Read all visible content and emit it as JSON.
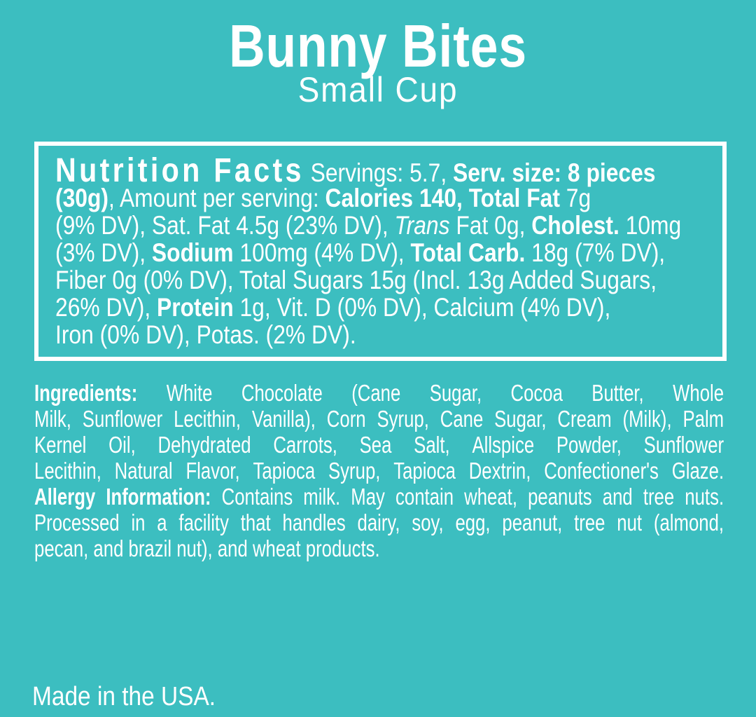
{
  "colors": {
    "background": "#3cbec0",
    "text": "#ffffff",
    "box_border": "#ffffff"
  },
  "header": {
    "title": "Bunny Bites",
    "subtitle": "Small Cup"
  },
  "nutrition_box": {
    "lines": [
      {
        "type": "plain",
        "segments": [
          {
            "t": "Nutrition Facts",
            "s": "h"
          },
          {
            "t": " Servings: 5.7, ",
            "s": "r"
          },
          {
            "t": "Serv. size: 8 pieces",
            "s": "b"
          }
        ]
      },
      {
        "type": "plain",
        "segments": [
          {
            "t": "(30g)",
            "s": "b"
          },
          {
            "t": ", Amount per serving: ",
            "s": "r"
          },
          {
            "t": "Calories 140, Total Fat",
            "s": "b"
          },
          {
            "t": " 7g",
            "s": "r"
          }
        ]
      },
      {
        "type": "plain",
        "segments": [
          {
            "t": "(9% DV), Sat. Fat 4.5g (23% DV), ",
            "s": "r"
          },
          {
            "t": "Trans",
            "s": "i"
          },
          {
            "t": " Fat 0g, ",
            "s": "r"
          },
          {
            "t": "Cholest.",
            "s": "b"
          },
          {
            "t": " 10mg",
            "s": "r"
          }
        ]
      },
      {
        "type": "plain",
        "segments": [
          {
            "t": "(3% DV), ",
            "s": "r"
          },
          {
            "t": "Sodium",
            "s": "b"
          },
          {
            "t": " 100mg (4% DV), ",
            "s": "r"
          },
          {
            "t": "Total Carb.",
            "s": "b"
          },
          {
            "t": " 18g (7% DV),",
            "s": "r"
          }
        ]
      },
      {
        "type": "plain",
        "segments": [
          {
            "t": "Fiber 0g (0% DV), Total Sugars 15g (Incl. 13g Added Sugars,",
            "s": "r"
          }
        ]
      },
      {
        "type": "plain",
        "segments": [
          {
            "t": "26% DV), ",
            "s": "r"
          },
          {
            "t": "Protein",
            "s": "b"
          },
          {
            "t": " 1g, Vit. D (0% DV), Calcium (4% DV),",
            "s": "r"
          }
        ]
      },
      {
        "type": "plain",
        "segments": [
          {
            "t": "Iron (0% DV), Potas. (2% DV).",
            "s": "r"
          }
        ]
      }
    ]
  },
  "ingredients_allergy": {
    "lines": [
      {
        "type": "justify",
        "segments": [
          {
            "t": "Ingredients:",
            "s": "b"
          },
          {
            "t": " White Chocolate (Cane Sugar, Cocoa Butter, Whole",
            "s": "r"
          }
        ]
      },
      {
        "type": "justify",
        "segments": [
          {
            "t": "Milk, Sunflower Lecithin, Vanilla), Corn Syrup, Cane Sugar, Cream (Milk), Palm",
            "s": "r"
          }
        ]
      },
      {
        "type": "justify",
        "segments": [
          {
            "t": "Kernel Oil, Dehydrated Carrots, Sea Salt, Allspice Powder, Sunflower",
            "s": "r"
          }
        ]
      },
      {
        "type": "justify",
        "segments": [
          {
            "t": "Lecithin, Natural Flavor, Tapioca Syrup, Tapioca Dextrin, Confectioner's Glaze.",
            "s": "r"
          }
        ]
      },
      {
        "type": "justify",
        "segments": [
          {
            "t": "Allergy Information:",
            "s": "b"
          },
          {
            "t": " Contains milk. May contain wheat, peanuts and tree nuts.",
            "s": "r"
          }
        ]
      },
      {
        "type": "justify",
        "segments": [
          {
            "t": "Processed in a facility that handles dairy, soy, egg, peanut, tree nut (almond,",
            "s": "r"
          }
        ]
      },
      {
        "type": "plain",
        "segments": [
          {
            "t": "pecan, and brazil nut), and wheat products.",
            "s": "r"
          }
        ]
      }
    ]
  },
  "footer": {
    "made_in": "Made in the USA."
  }
}
